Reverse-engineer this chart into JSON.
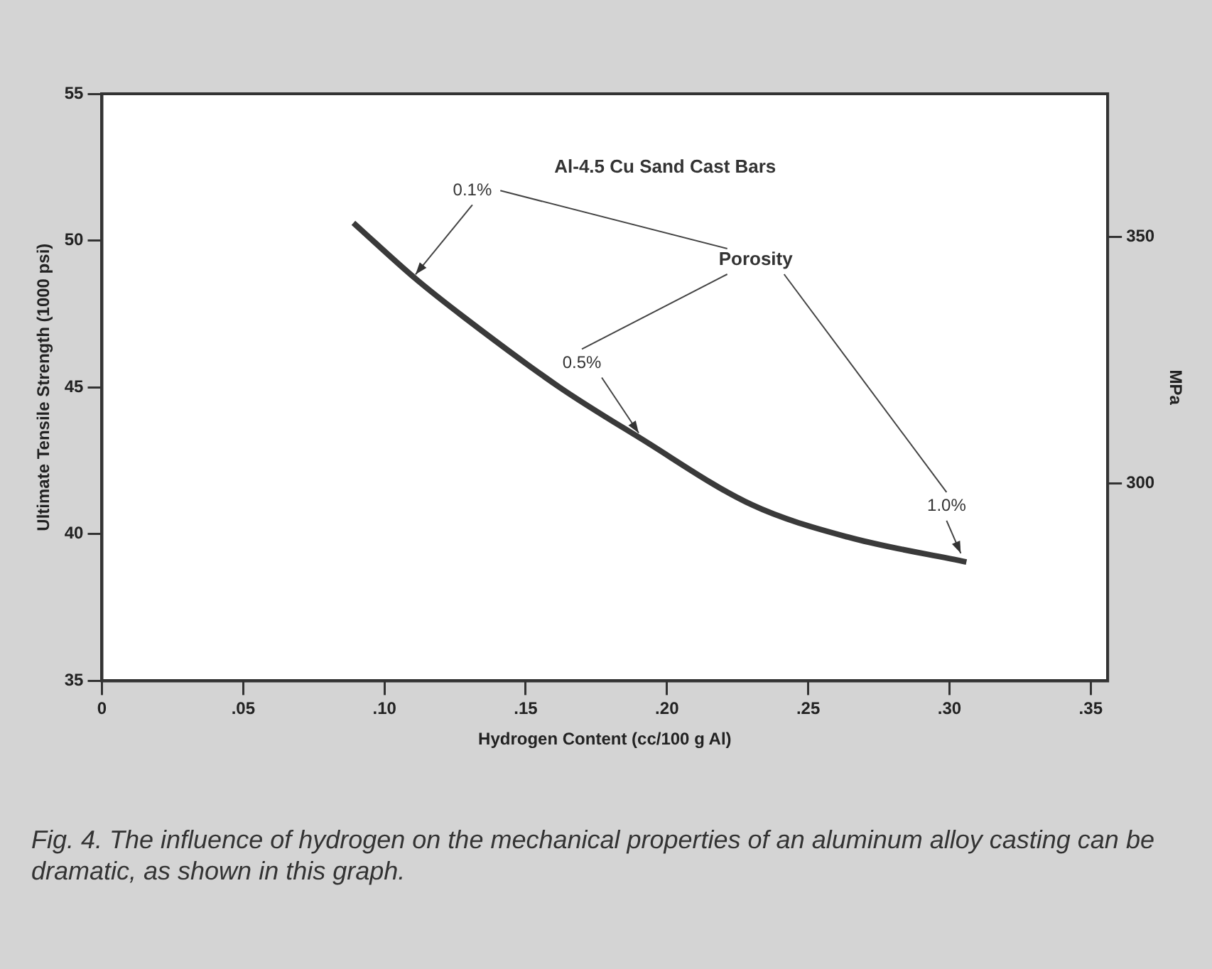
{
  "chart_data": {
    "type": "line",
    "title": "Al-4.5 Cu Sand Cast Bars",
    "xlabel": "Hydrogen Content (cc/100 g Al)",
    "ylabel": "Ultimate Tensile Strength (1000 psi)",
    "y2label": "MPa",
    "x": [
      0.089,
      0.111,
      0.128,
      0.162,
      0.19,
      0.23,
      0.264,
      0.306
    ],
    "series": [
      {
        "color": "#3a3a3a",
        "values": [
          50.6,
          48.7,
          47.4,
          45.0,
          43.3,
          41.0,
          39.9,
          39.05
        ]
      }
    ],
    "xlim": [
      0,
      0.356
    ],
    "xticks": [
      0,
      {
        "value": 0.05,
        "label": ".05"
      },
      {
        "value": 0.1,
        "label": ".10"
      },
      {
        "value": 0.15,
        "label": ".15"
      },
      {
        "value": 0.2,
        "label": ".20"
      },
      {
        "value": 0.25,
        "label": ".25"
      },
      {
        "value": 0.3,
        "label": ".30"
      },
      {
        "value": 0.35,
        "label": ".35"
      }
    ],
    "ylim": [
      35,
      55
    ],
    "yticks": [
      35,
      40,
      45,
      50,
      55
    ],
    "y2lim": [
      260,
      379
    ],
    "y2ticks": [
      300,
      350
    ],
    "annotations": [
      "Porosity",
      {
        "text": "0.1%",
        "x": 0.111,
        "y": 48.7
      },
      {
        "text": "0.5%",
        "x": 0.19,
        "y": 43.3
      },
      {
        "text": "1.0%",
        "x": 0.304,
        "y": 39.2
      },
      "Fig. 4. The influence of hydrogen on the mechanical properties of an aluminum alloy casting can be dramatic, as shown in this graph."
    ],
    "grid": false,
    "legend": false,
    "marker": "none",
    "line_style": "solid"
  }
}
